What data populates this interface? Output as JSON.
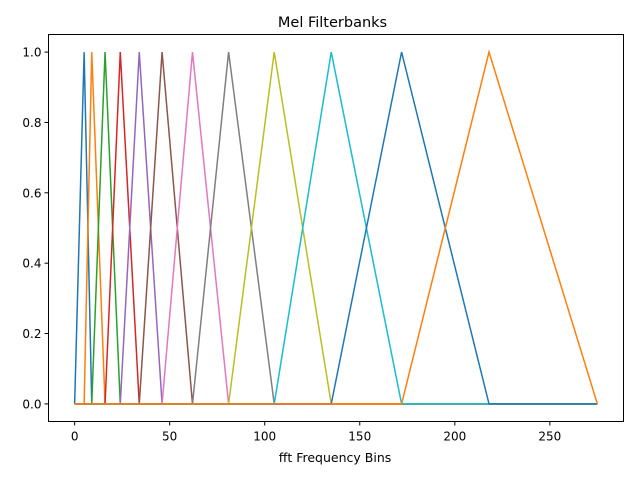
{
  "chart_data": {
    "type": "line",
    "title": "Mel Filterbanks",
    "xlabel": "fft Frequency Bins",
    "ylabel": "",
    "xlim": [
      -13.75,
      288.75
    ],
    "ylim": [
      -0.05,
      1.05
    ],
    "x_ticks": [
      0,
      50,
      100,
      150,
      200,
      250
    ],
    "x_tick_labels": [
      "0",
      "50",
      "100",
      "150",
      "200",
      "250"
    ],
    "y_ticks": [
      0.0,
      0.2,
      0.4,
      0.6,
      0.8,
      1.0
    ],
    "y_tick_labels": [
      "0.0",
      "0.2",
      "0.4",
      "0.6",
      "0.8",
      "1.0"
    ],
    "grid": false,
    "legend": "none",
    "x_range": [
      0,
      275
    ],
    "series": [
      {
        "color": "#1f77b4",
        "points": [
          [
            0,
            0
          ],
          [
            5,
            1
          ],
          [
            9,
            0
          ]
        ]
      },
      {
        "color": "#ff7f0e",
        "points": [
          [
            5,
            0
          ],
          [
            9,
            1
          ],
          [
            16,
            0
          ]
        ]
      },
      {
        "color": "#2ca02c",
        "points": [
          [
            9,
            0
          ],
          [
            16,
            1
          ],
          [
            24,
            0
          ]
        ]
      },
      {
        "color": "#d62728",
        "points": [
          [
            16,
            0
          ],
          [
            24,
            1
          ],
          [
            34,
            0
          ]
        ]
      },
      {
        "color": "#9467bd",
        "points": [
          [
            24,
            0
          ],
          [
            34,
            1
          ],
          [
            46,
            0
          ]
        ]
      },
      {
        "color": "#8c564b",
        "points": [
          [
            34,
            0
          ],
          [
            46,
            1
          ],
          [
            62,
            0
          ]
        ]
      },
      {
        "color": "#e377c2",
        "points": [
          [
            46,
            0
          ],
          [
            62,
            1
          ],
          [
            81,
            0
          ]
        ]
      },
      {
        "color": "#7f7f7f",
        "points": [
          [
            62,
            0
          ],
          [
            81,
            1
          ],
          [
            105,
            0
          ]
        ]
      },
      {
        "color": "#bcbd22",
        "points": [
          [
            81,
            0
          ],
          [
            105,
            1
          ],
          [
            135,
            0
          ]
        ]
      },
      {
        "color": "#17becf",
        "points": [
          [
            105,
            0
          ],
          [
            135,
            1
          ],
          [
            172,
            0
          ]
        ]
      },
      {
        "color": "#1f77b4",
        "points": [
          [
            135,
            0
          ],
          [
            172,
            1
          ],
          [
            218,
            0
          ]
        ]
      },
      {
        "color": "#ff7f0e",
        "points": [
          [
            172,
            0
          ],
          [
            218,
            1
          ],
          [
            275,
            0
          ]
        ]
      }
    ]
  }
}
